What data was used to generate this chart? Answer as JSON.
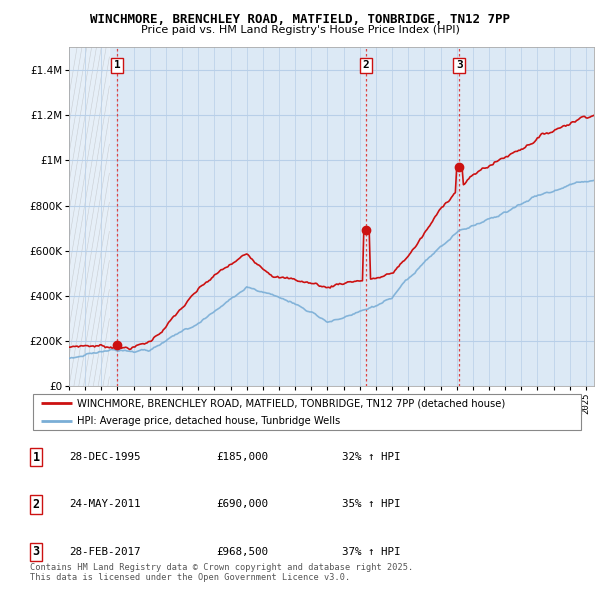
{
  "title": "WINCHMORE, BRENCHLEY ROAD, MATFIELD, TONBRIDGE, TN12 7PP",
  "subtitle": "Price paid vs. HM Land Registry's House Price Index (HPI)",
  "ytick_values": [
    0,
    200000,
    400000,
    600000,
    800000,
    1000000,
    1200000,
    1400000
  ],
  "ylim": [
    0,
    1500000
  ],
  "sale_dates_num": [
    1995.99,
    2011.39,
    2017.16
  ],
  "sale_prices": [
    185000,
    690000,
    968500
  ],
  "sale_labels": [
    "1",
    "2",
    "3"
  ],
  "legend_line1": "WINCHMORE, BRENCHLEY ROAD, MATFIELD, TONBRIDGE, TN12 7PP (detached house)",
  "legend_line2": "HPI: Average price, detached house, Tunbridge Wells",
  "table_rows": [
    [
      "1",
      "28-DEC-1995",
      "£185,000",
      "32% ↑ HPI"
    ],
    [
      "2",
      "24-MAY-2011",
      "£690,000",
      "35% ↑ HPI"
    ],
    [
      "3",
      "28-FEB-2017",
      "£968,500",
      "37% ↑ HPI"
    ]
  ],
  "footer": "Contains HM Land Registry data © Crown copyright and database right 2025.\nThis data is licensed under the Open Government Licence v3.0.",
  "hpi_color": "#7aaed6",
  "sale_line_color": "#cc1111",
  "dot_color": "#cc1111",
  "grid_color": "#b8cfe8",
  "bg_color": "#dce9f5",
  "xlim_start": 1993.0,
  "xlim_end": 2025.5
}
